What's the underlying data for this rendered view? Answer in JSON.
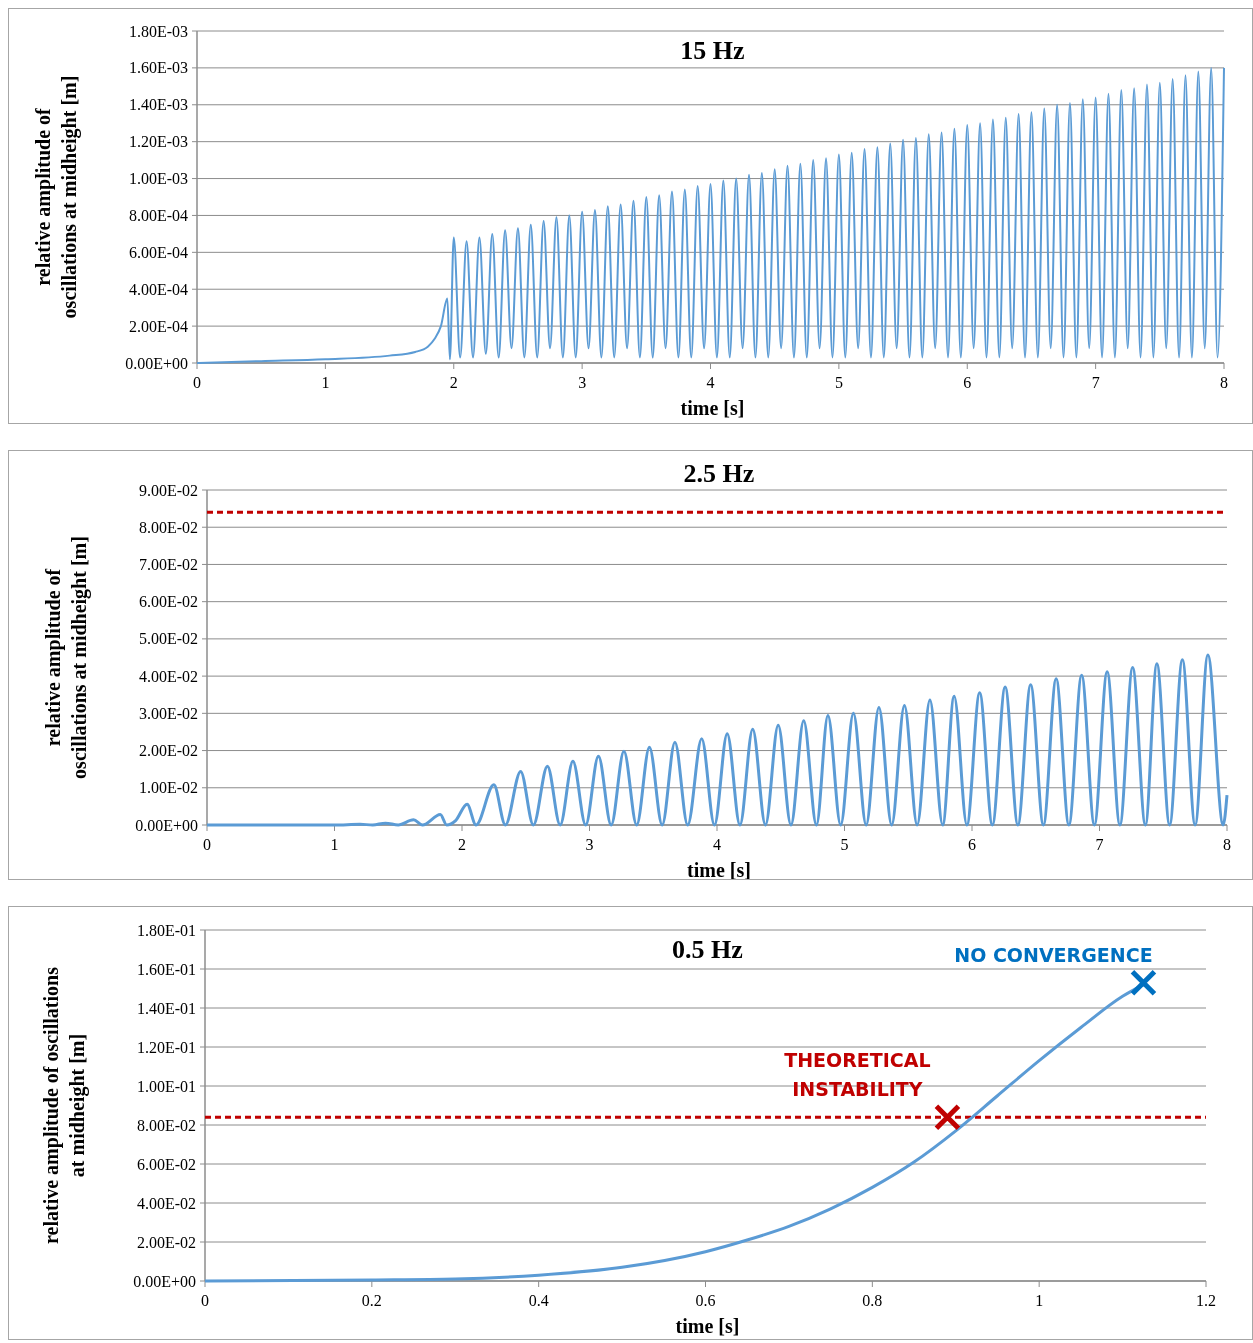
{
  "chart_data": [
    {
      "type": "line",
      "title": "15 Hz",
      "xlabel": "time [s]",
      "ylabel": "relative amplitude of\noscillations at midheight [m]",
      "xlim": [
        0,
        8
      ],
      "xticks": [
        0,
        1,
        2,
        3,
        4,
        5,
        6,
        7,
        8
      ],
      "ylim": [
        0,
        0.0018
      ],
      "yticks": [
        {
          "value": 0,
          "label": "0.00E+00"
        },
        {
          "value": 0.0002,
          "label": "2.00E-04"
        },
        {
          "value": 0.0004,
          "label": "4.00E-04"
        },
        {
          "value": 0.0006,
          "label": "6.00E-04"
        },
        {
          "value": 0.0008,
          "label": "8.00E-04"
        },
        {
          "value": 0.001,
          "label": "1.00E-03"
        },
        {
          "value": 0.0012,
          "label": "1.20E-03"
        },
        {
          "value": 0.0014,
          "label": "1.40E-03"
        },
        {
          "value": 0.0016,
          "label": "1.60E-03"
        },
        {
          "value": 0.0018,
          "label": "1.80E-03"
        }
      ],
      "grid": "y",
      "line_style": "solid",
      "series": [
        {
          "color": "#5b9bd5",
          "x": [
            0,
            0.5,
            1,
            1.5,
            1.7,
            1.8,
            1.85,
            1.9,
            1.95,
            1.97,
            2.0,
            2.05,
            2.1,
            2.15,
            2.2,
            2.25,
            2.3,
            2.35,
            2.4,
            2.45,
            2.5,
            2.55,
            2.6,
            2.65,
            2.7,
            2.75,
            2.8,
            2.85,
            2.9,
            2.95,
            3.0,
            3.05,
            3.1,
            3.15,
            3.2,
            3.25,
            3.3,
            3.35,
            3.4,
            3.45,
            3.5,
            3.55,
            3.6,
            3.65,
            3.7,
            3.75,
            3.8,
            3.85,
            3.9,
            3.95,
            4.0,
            4.05,
            4.1,
            4.15,
            4.2,
            4.25,
            4.3,
            4.35,
            4.4,
            4.45,
            4.5,
            4.55,
            4.6,
            4.65,
            4.7,
            4.75,
            4.8,
            4.85,
            4.9,
            4.95,
            5.0,
            5.05,
            5.1,
            5.15,
            5.2,
            5.25,
            5.3,
            5.35,
            5.4,
            5.45,
            5.5,
            5.55,
            5.6,
            5.65,
            5.7,
            5.75,
            5.8,
            5.85,
            5.9,
            5.95,
            6.0,
            6.05,
            6.1,
            6.15,
            6.2,
            6.25,
            6.3,
            6.35,
            6.4,
            6.45,
            6.5,
            6.55,
            6.6,
            6.65,
            6.7,
            6.75,
            6.8,
            6.85,
            6.9,
            6.95,
            7.0,
            7.05,
            7.1,
            7.15,
            7.2,
            7.25,
            7.3,
            7.35,
            7.4,
            7.45,
            7.5,
            7.55,
            7.6,
            7.65,
            7.7,
            7.75,
            7.8,
            7.85,
            7.9,
            7.95,
            8.0
          ],
          "values": [
            0,
            1e-05,
            2e-05,
            4e-05,
            6e-05,
            9e-05,
            0.00013,
            0.0002,
            0.00035,
            2e-05,
            0.00068,
            3e-05,
            0.00066,
            3e-05,
            0.00068,
            5e-05,
            0.0007,
            3e-05,
            0.00072,
            8e-05,
            0.00073,
            3e-05,
            0.00075,
            3e-05,
            0.00077,
            8e-05,
            0.00079,
            3e-05,
            0.0008,
            3e-05,
            0.00082,
            8e-05,
            0.00083,
            3e-05,
            0.00085,
            3e-05,
            0.00086,
            8e-05,
            0.00088,
            3e-05,
            0.0009,
            3e-05,
            0.00091,
            8e-05,
            0.00093,
            3e-05,
            0.00094,
            3e-05,
            0.00096,
            8e-05,
            0.00097,
            3e-05,
            0.00099,
            3e-05,
            0.001,
            8e-05,
            0.00102,
            3e-05,
            0.00103,
            3e-05,
            0.00105,
            8e-05,
            0.00107,
            3e-05,
            0.00108,
            3e-05,
            0.0011,
            8e-05,
            0.00111,
            3e-05,
            0.00113,
            3e-05,
            0.00114,
            8e-05,
            0.00116,
            3e-05,
            0.00117,
            3e-05,
            0.00119,
            8e-05,
            0.00121,
            3e-05,
            0.00122,
            3e-05,
            0.00124,
            8e-05,
            0.00125,
            3e-05,
            0.00127,
            3e-05,
            0.00129,
            8e-05,
            0.0013,
            3e-05,
            0.00132,
            3e-05,
            0.00133,
            8e-05,
            0.00135,
            3e-05,
            0.00136,
            3e-05,
            0.00138,
            8e-05,
            0.0014,
            3e-05,
            0.00141,
            3e-05,
            0.00143,
            8e-05,
            0.00144,
            3e-05,
            0.00146,
            3e-05,
            0.00148,
            8e-05,
            0.00149,
            3e-05,
            0.00151,
            3e-05,
            0.00152,
            8e-05,
            0.00154,
            3e-05,
            0.00156,
            3e-05,
            0.00158,
            8e-05,
            0.0016,
            3e-05,
            0.0016
          ]
        }
      ]
    },
    {
      "type": "line",
      "title": "2.5 Hz",
      "xlabel": "time [s]",
      "ylabel": "relative amplitude of\noscillations at midheight [m]",
      "xlim": [
        0,
        8
      ],
      "xticks": [
        0,
        1,
        2,
        3,
        4,
        5,
        6,
        7,
        8
      ],
      "ylim": [
        0,
        0.09
      ],
      "yticks": [
        {
          "value": 0,
          "label": "0.00E+00"
        },
        {
          "value": 0.01,
          "label": "1.00E-02"
        },
        {
          "value": 0.02,
          "label": "2.00E-02"
        },
        {
          "value": 0.03,
          "label": "3.00E-02"
        },
        {
          "value": 0.04,
          "label": "4.00E-02"
        },
        {
          "value": 0.05,
          "label": "5.00E-02"
        },
        {
          "value": 0.06,
          "label": "6.00E-02"
        },
        {
          "value": 0.07,
          "label": "7.00E-02"
        },
        {
          "value": 0.08,
          "label": "8.00E-02"
        },
        {
          "value": 0.09,
          "label": "9.00E-02"
        }
      ],
      "grid": "y",
      "line_style": "solid",
      "ref_lines": [
        {
          "axis": "y",
          "value": 0.084,
          "color": "#c00000",
          "line_style": "dashed"
        }
      ],
      "series": [
        {
          "color": "#5b9bd5",
          "x": [
            0,
            1.0,
            1.2,
            1.3,
            1.4,
            1.5,
            1.62,
            1.69,
            1.83,
            1.88,
            1.95,
            2.04,
            2.11,
            2.25,
            2.34,
            2.46,
            2.56,
            2.67,
            2.77,
            2.87,
            2.97,
            3.07,
            3.17,
            3.27,
            3.37,
            3.47,
            3.57,
            3.67,
            3.77,
            3.88,
            3.98,
            4.08,
            4.18,
            4.28,
            4.38,
            4.48,
            4.58,
            4.68,
            4.78,
            4.87,
            4.97,
            5.07,
            5.17,
            5.27,
            5.37,
            5.47,
            5.57,
            5.67,
            5.77,
            5.86,
            5.96,
            6.06,
            6.16,
            6.26,
            6.36,
            6.46,
            6.56,
            6.66,
            6.76,
            6.86,
            6.96,
            7.06,
            7.16,
            7.26,
            7.36,
            7.45,
            7.55,
            7.65,
            7.75,
            7.85,
            7.97,
            8.0
          ],
          "values": [
            0,
            0,
            0.0002,
            0,
            0.0005,
            0,
            0.0014,
            0,
            0.0028,
            0,
            0.0012,
            0.0056,
            0,
            0.0108,
            0,
            0.0144,
            0,
            0.0158,
            0,
            0.0171,
            0,
            0.0185,
            0,
            0.0198,
            0,
            0.0209,
            0,
            0.0222,
            0,
            0.0232,
            0,
            0.0245,
            0,
            0.0257,
            0,
            0.0268,
            0,
            0.028,
            0,
            0.0294,
            0,
            0.03,
            0,
            0.0316,
            0,
            0.0321,
            0,
            0.0336,
            0,
            0.0346,
            0,
            0.0355,
            0,
            0.0371,
            0,
            0.0377,
            0,
            0.0393,
            0,
            0.0402,
            0,
            0.0412,
            0,
            0.0423,
            0,
            0.0433,
            0,
            0.0444,
            0,
            0.0457,
            0,
            0.008
          ]
        }
      ]
    },
    {
      "type": "line",
      "title": "0.5 Hz",
      "xlabel": "time [s]",
      "ylabel": "relative amplitude of oscillations\nat midheight [m]",
      "xlim": [
        0,
        1.2
      ],
      "xticks": [
        0,
        0.2,
        0.4,
        0.6,
        0.8,
        1,
        1.2
      ],
      "ylim": [
        0,
        0.18
      ],
      "yticks": [
        {
          "value": 0,
          "label": "0.00E+00"
        },
        {
          "value": 0.02,
          "label": "2.00E-02"
        },
        {
          "value": 0.04,
          "label": "4.00E-02"
        },
        {
          "value": 0.06,
          "label": "6.00E-02"
        },
        {
          "value": 0.08,
          "label": "8.00E-02"
        },
        {
          "value": 0.1,
          "label": "1.00E-01"
        },
        {
          "value": 0.12,
          "label": "1.20E-01"
        },
        {
          "value": 0.14,
          "label": "1.40E-01"
        },
        {
          "value": 0.16,
          "label": "1.60E-01"
        },
        {
          "value": 0.18,
          "label": "1.80E-01"
        }
      ],
      "grid": "y",
      "line_style": "solid",
      "ref_lines": [
        {
          "axis": "y",
          "value": 0.084,
          "color": "#c00000",
          "line_style": "dashed"
        }
      ],
      "annotations": [
        {
          "text": "NO CONVERGENCE",
          "x": 1.125,
          "y": 0.153
        },
        {
          "text": "THEORETICAL\nINSTABILITY",
          "x": 0.89,
          "y": 0.084
        }
      ],
      "series": [
        {
          "color": "#5b9bd5",
          "x": [
            0,
            0.2,
            0.3,
            0.4,
            0.5,
            0.6,
            0.65,
            0.7,
            0.75,
            0.8,
            0.85,
            0.9,
            0.95,
            1.0,
            1.05,
            1.1,
            1.125
          ],
          "values": [
            0,
            0.0005,
            0.001,
            0.003,
            0.007,
            0.015,
            0.021,
            0.028,
            0.037,
            0.048,
            0.061,
            0.077,
            0.095,
            0.113,
            0.13,
            0.146,
            0.152
          ]
        },
        {
          "type": "scatter",
          "marker": "cross",
          "color": "#0070c0",
          "x": [
            1.125
          ],
          "values": [
            0.153
          ]
        },
        {
          "type": "scatter",
          "marker": "cross",
          "color": "#c00000",
          "x": [
            0.89
          ],
          "values": [
            0.084
          ]
        }
      ]
    }
  ]
}
